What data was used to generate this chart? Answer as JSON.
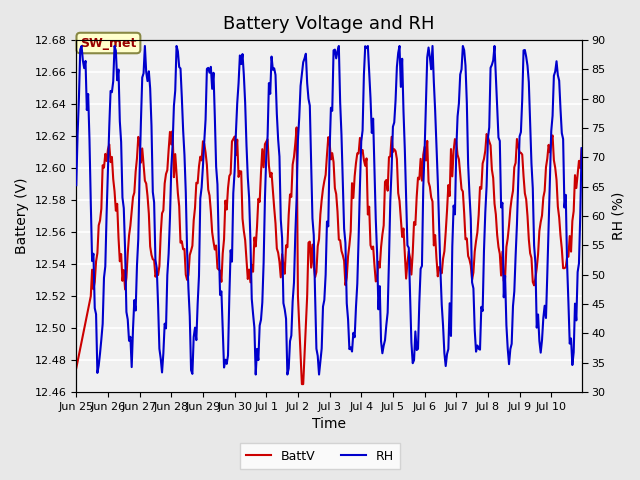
{
  "title": "Battery Voltage and RH",
  "xlabel": "Time",
  "ylabel_left": "Battery (V)",
  "ylabel_right": "RH (%)",
  "legend_label_red": "BattV",
  "legend_label_blue": "RH",
  "annotation": "SW_met",
  "ylim_left": [
    12.46,
    12.68
  ],
  "ylim_right": [
    30,
    90
  ],
  "color_red": "#CC0000",
  "color_blue": "#0000CC",
  "bg_color": "#E8E8E8",
  "plot_bg": "#F0F0F0",
  "grid_color": "#FFFFFF",
  "annotation_bg": "#FFFFCC",
  "annotation_border": "#888844",
  "title_fontsize": 13,
  "axis_label_fontsize": 10,
  "tick_fontsize": 8,
  "legend_fontsize": 9,
  "line_width": 1.5,
  "xtick_labels": [
    "Jun 25",
    "Jun 26",
    "Jun 27",
    "Jun 28",
    "Jun 29",
    "Jun 30",
    "Jul 1",
    "Jul 2",
    "Jul 3",
    "Jul 4",
    "Jul 5",
    "Jul 6",
    "Jul 7",
    "Jul 8",
    "Jul 9",
    "Jul 10"
  ]
}
